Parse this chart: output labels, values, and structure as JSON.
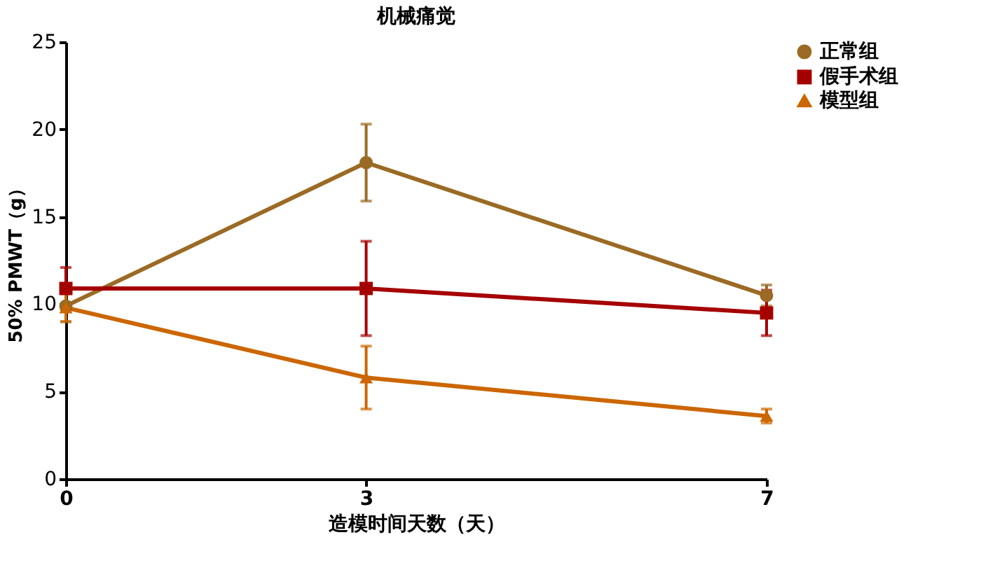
{
  "chart_data": {
    "type": "line",
    "title": "机械痛觉",
    "xlabel": "造模时间天数（天）",
    "ylabel": "50% PMWT（g）",
    "x": [
      0,
      3,
      7
    ],
    "xlim": [
      0,
      7
    ],
    "xticks": [
      0,
      3,
      7
    ],
    "ylim": [
      0,
      25
    ],
    "yticks": [
      0,
      5,
      10,
      15,
      20,
      25
    ],
    "grid": false,
    "legend": "right",
    "line_style": "solid",
    "series": [
      {
        "name": "正常组",
        "color": "#9b6a24",
        "marker": "circle",
        "values": [
          9.9,
          18.1,
          10.5
        ],
        "errors": [
          0.9,
          2.2,
          0.6
        ]
      },
      {
        "name": "假手术组",
        "color": "#a50000",
        "marker": "square",
        "values": [
          10.9,
          10.9,
          9.5
        ],
        "errors": [
          1.2,
          2.7,
          1.3
        ]
      },
      {
        "name": "模型组",
        "color": "#cc6600",
        "marker": "triangle",
        "values": [
          9.8,
          5.8,
          3.6
        ],
        "errors": [
          0.8,
          1.8,
          0.4
        ]
      }
    ]
  }
}
